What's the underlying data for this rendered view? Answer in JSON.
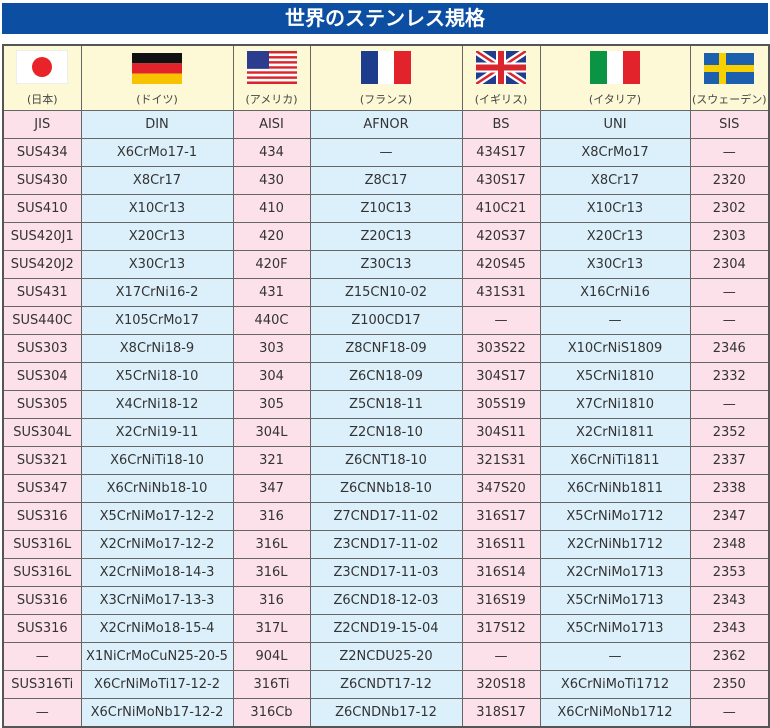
{
  "title": "世界のステンレス規格",
  "countries": [
    {
      "name": "(日本)",
      "flag": "japan-flag"
    },
    {
      "name": "(ドイツ)",
      "flag": "germany-flag"
    },
    {
      "name": "(アメリカ)",
      "flag": "usa-flag"
    },
    {
      "name": "(フランス)",
      "flag": "france-flag"
    },
    {
      "name": "(イギリス)",
      "flag": "uk-flag"
    },
    {
      "name": "(イタリア)",
      "flag": "italy-flag"
    },
    {
      "name": "(スウェーデン)",
      "flag": "sweden-flag"
    }
  ],
  "headers": [
    "JIS",
    "DIN",
    "AISI",
    "AFNOR",
    "BS",
    "UNI",
    "SIS"
  ],
  "rows": [
    [
      "SUS434",
      "X6CrMo17-1",
      "434",
      "—",
      "434S17",
      "X8CrMo17",
      "—"
    ],
    [
      "SUS430",
      "X8Cr17",
      "430",
      "Z8C17",
      "430S17",
      "X8Cr17",
      "2320"
    ],
    [
      "SUS410",
      "X10Cr13",
      "410",
      "Z10C13",
      "410C21",
      "X10Cr13",
      "2302"
    ],
    [
      "SUS420J1",
      "X20Cr13",
      "420",
      "Z20C13",
      "420S37",
      "X20Cr13",
      "2303"
    ],
    [
      "SUS420J2",
      "X30Cr13",
      "420F",
      "Z30C13",
      "420S45",
      "X30Cr13",
      "2304"
    ],
    [
      "SUS431",
      "X17CrNi16-2",
      "431",
      "Z15CN10-02",
      "431S31",
      "X16CrNi16",
      "—"
    ],
    [
      "SUS440C",
      "X105CrMo17",
      "440C",
      "Z100CD17",
      "—",
      "—",
      "—"
    ],
    [
      "SUS303",
      "X8CrNi18-9",
      "303",
      "Z8CNF18-09",
      "303S22",
      "X10CrNiS1809",
      "2346"
    ],
    [
      "SUS304",
      "X5CrNi18-10",
      "304",
      "Z6CN18-09",
      "304S17",
      "X5CrNi1810",
      "2332"
    ],
    [
      "SUS305",
      "X4CrNi18-12",
      "305",
      "Z5CN18-11",
      "305S19",
      "X7CrNi1810",
      "—"
    ],
    [
      "SUS304L",
      "X2CrNi19-11",
      "304L",
      "Z2CN18-10",
      "304S11",
      "X2CrNi1811",
      "2352"
    ],
    [
      "SUS321",
      "X6CrNiTi18-10",
      "321",
      "Z6CNT18-10",
      "321S31",
      "X6CrNiTi1811",
      "2337"
    ],
    [
      "SUS347",
      "X6CrNiNb18-10",
      "347",
      "Z6CNNb18-10",
      "347S20",
      "X6CrNiNb1811",
      "2338"
    ],
    [
      "SUS316",
      "X5CrNiMo17-12-2",
      "316",
      "Z7CND17-11-02",
      "316S17",
      "X5CrNiMo1712",
      "2347"
    ],
    [
      "SUS316L",
      "X2CrNiMo17-12-2",
      "316L",
      "Z3CND17-11-02",
      "316S11",
      "X2CrNiNb1712",
      "2348"
    ],
    [
      "SUS316L",
      "X2CrNiMo18-14-3",
      "316L",
      "Z3CND17-11-03",
      "316S14",
      "X2CrNiMo1713",
      "2353"
    ],
    [
      "SUS316",
      "X3CrNiMo17-13-3",
      "316",
      "Z6CND18-12-03",
      "316S19",
      "X5CrNiMo1713",
      "2343"
    ],
    [
      "SUS316",
      "X2CrNiMo18-15-4",
      "317L",
      "Z2CND19-15-04",
      "317S12",
      "X5CrNiMo1713",
      "2343"
    ],
    [
      "—",
      "X1NiCrMoCuN25-20-5",
      "904L",
      "Z2NCDU25-20",
      "—",
      "—",
      "2362"
    ],
    [
      "SUS316Ti",
      "X6CrNiMoTi17-12-2",
      "316Ti",
      "Z6CNDT17-12",
      "320S18",
      "X6CrNiMoTi1712",
      "2350"
    ],
    [
      "—",
      "X6CrNiMoNb17-12-2",
      "316Cb",
      "Z6CNDNb17-12",
      "318S17",
      "X6CrNiMoNb1712",
      "—"
    ]
  ]
}
